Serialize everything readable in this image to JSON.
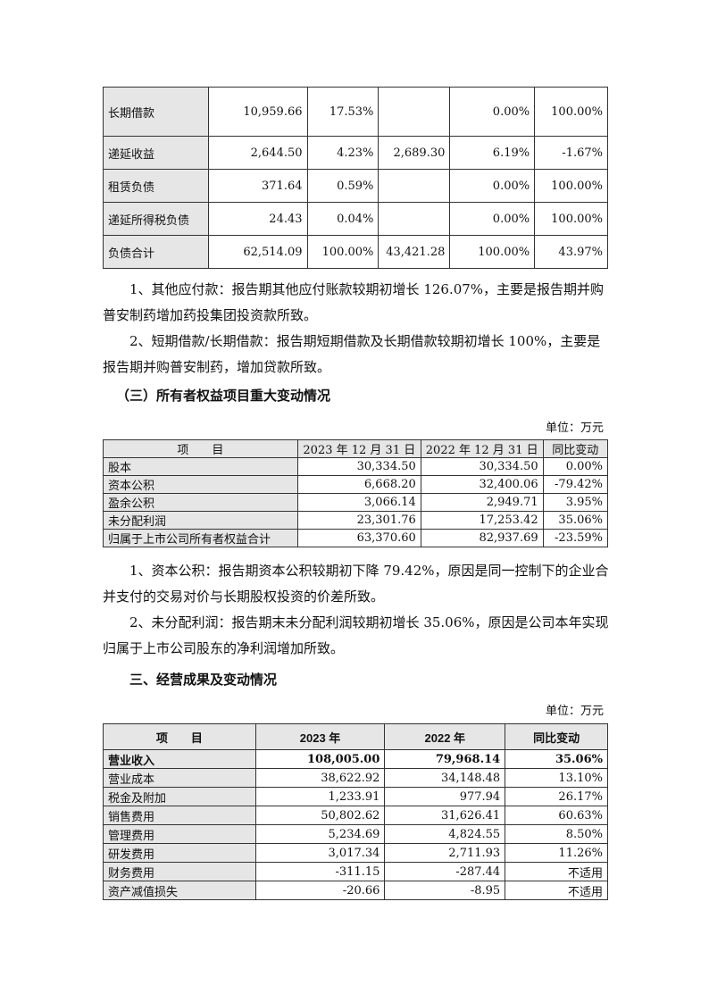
{
  "table1": {
    "rows": [
      [
        "长期借款",
        "10,959.66",
        "17.53%",
        "",
        "0.00%",
        "100.00%"
      ],
      [
        "递延收益",
        "2,644.50",
        "4.23%",
        "2,689.30",
        "6.19%",
        "-1.67%"
      ],
      [
        "租赁负债",
        "371.64",
        "0.59%",
        "",
        "0.00%",
        "100.00%"
      ],
      [
        "递延所得税负债",
        "24.43",
        "0.04%",
        "",
        "0.00%",
        "100.00%"
      ],
      [
        "负债合计",
        "62,514.09",
        "100.00%",
        "43,421.28",
        "100.00%",
        "43.97%"
      ]
    ]
  },
  "notes1": [
    "1、其他应付款：报告期其他应付账款较期初增长 126.07%，主要是报告期并购普安制药增加药投集团投资款所致。",
    "2、短期借款/长期借款：报告期短期借款及长期借款较期初增长 100%，主要是报告期并购普安制药，增加贷款所致。"
  ],
  "section2": {
    "heading": "（三）所有者权益项目重大变动情况",
    "unit": "单位：万元",
    "headers": [
      "项　　目",
      "2023 年 12 月 31 日",
      "2022 年 12 月 31 日",
      "同比变动"
    ],
    "rows": [
      [
        "股本",
        "30,334.50",
        "30,334.50",
        "0.00%"
      ],
      [
        "资本公积",
        "6,668.20",
        "32,400.06",
        "-79.42%"
      ],
      [
        "盈余公积",
        "3,066.14",
        "2,949.71",
        "3.95%"
      ],
      [
        "未分配利润",
        "23,301.76",
        "17,253.42",
        "35.06%"
      ],
      [
        "归属于上市公司所有者权益合计",
        "63,370.60",
        "82,937.69",
        "-23.59%"
      ]
    ]
  },
  "notes2": [
    "1、资本公积：报告期资本公积较期初下降 79.42%，原因是同一控制下的企业合并支付的交易对价与长期股权投资的价差所致。",
    "2、未分配利润：报告期末未分配利润较期初增长 35.06%，原因是公司本年实现归属于上市公司股东的净利润增加所致。"
  ],
  "section3": {
    "heading": "三、经营成果及变动情况",
    "unit": "单位：万元",
    "headers": [
      "项　　目",
      "2023 年",
      "2022 年",
      "同比变动"
    ],
    "rows": [
      [
        "营业收入",
        "108,005.00",
        "79,968.14",
        "35.06%"
      ],
      [
        "营业成本",
        "38,622.92",
        "34,148.48",
        "13.10%"
      ],
      [
        "税金及附加",
        "1,233.91",
        "977.94",
        "26.17%"
      ],
      [
        "销售费用",
        "50,802.62",
        "31,626.41",
        "60.63%"
      ],
      [
        "管理费用",
        "5,234.69",
        "4,824.55",
        "8.50%"
      ],
      [
        "研发费用",
        "3,017.34",
        "2,711.93",
        "11.26%"
      ],
      [
        "财务费用",
        "-311.15",
        "-287.44",
        "不适用"
      ],
      [
        "资产减值损失",
        "-20.66",
        "-8.95",
        "不适用"
      ]
    ]
  }
}
